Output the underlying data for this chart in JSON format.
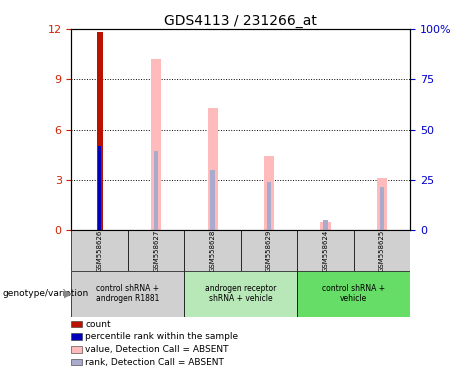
{
  "title": "GDS4113 / 231266_at",
  "samples": [
    "GSM558626",
    "GSM558627",
    "GSM558628",
    "GSM558629",
    "GSM558624",
    "GSM558625"
  ],
  "group_info": [
    {
      "start": 0,
      "end": 1,
      "label": "control shRNA +\nandrogen R1881",
      "color": "#d0d0d0"
    },
    {
      "start": 2,
      "end": 3,
      "label": "androgen receptor\nshRNA + vehicle",
      "color": "#b8e8b8"
    },
    {
      "start": 4,
      "end": 5,
      "label": "control shRNA +\nvehicle",
      "color": "#66dd66"
    }
  ],
  "pink_bar_values": [
    0,
    10.2,
    7.3,
    4.4,
    0.5,
    3.1
  ],
  "blue_bar_values": [
    0,
    4.7,
    3.6,
    2.9,
    0.6,
    2.6
  ],
  "count_values": [
    11.8,
    0,
    0,
    0,
    0,
    0
  ],
  "percentile_values": [
    5.0,
    0,
    0,
    0,
    0,
    0
  ],
  "ylim_left": [
    0,
    12
  ],
  "ylim_right": [
    0,
    100
  ],
  "yticks_left": [
    0,
    3,
    6,
    9,
    12
  ],
  "yticks_right": [
    0,
    25,
    50,
    75,
    100
  ],
  "ytick_labels_right": [
    "0",
    "25",
    "50",
    "75",
    "100%"
  ],
  "pink_bar_width": 0.18,
  "blue_bar_width": 0.08,
  "count_bar_width": 0.1,
  "percentile_bar_width": 0.06,
  "count_color": "#bb1100",
  "percentile_color": "#0000bb",
  "pink_color": "#ffbbbb",
  "blue_color": "#aaaacc",
  "left_tick_color": "#cc2200",
  "right_tick_color": "#0000cc",
  "sample_label_color": "#d0d0d0",
  "legend_items": [
    {
      "color": "#bb1100",
      "label": "count"
    },
    {
      "color": "#0000bb",
      "label": "percentile rank within the sample"
    },
    {
      "color": "#ffbbbb",
      "label": "value, Detection Call = ABSENT"
    },
    {
      "color": "#aaaacc",
      "label": "rank, Detection Call = ABSENT"
    }
  ]
}
